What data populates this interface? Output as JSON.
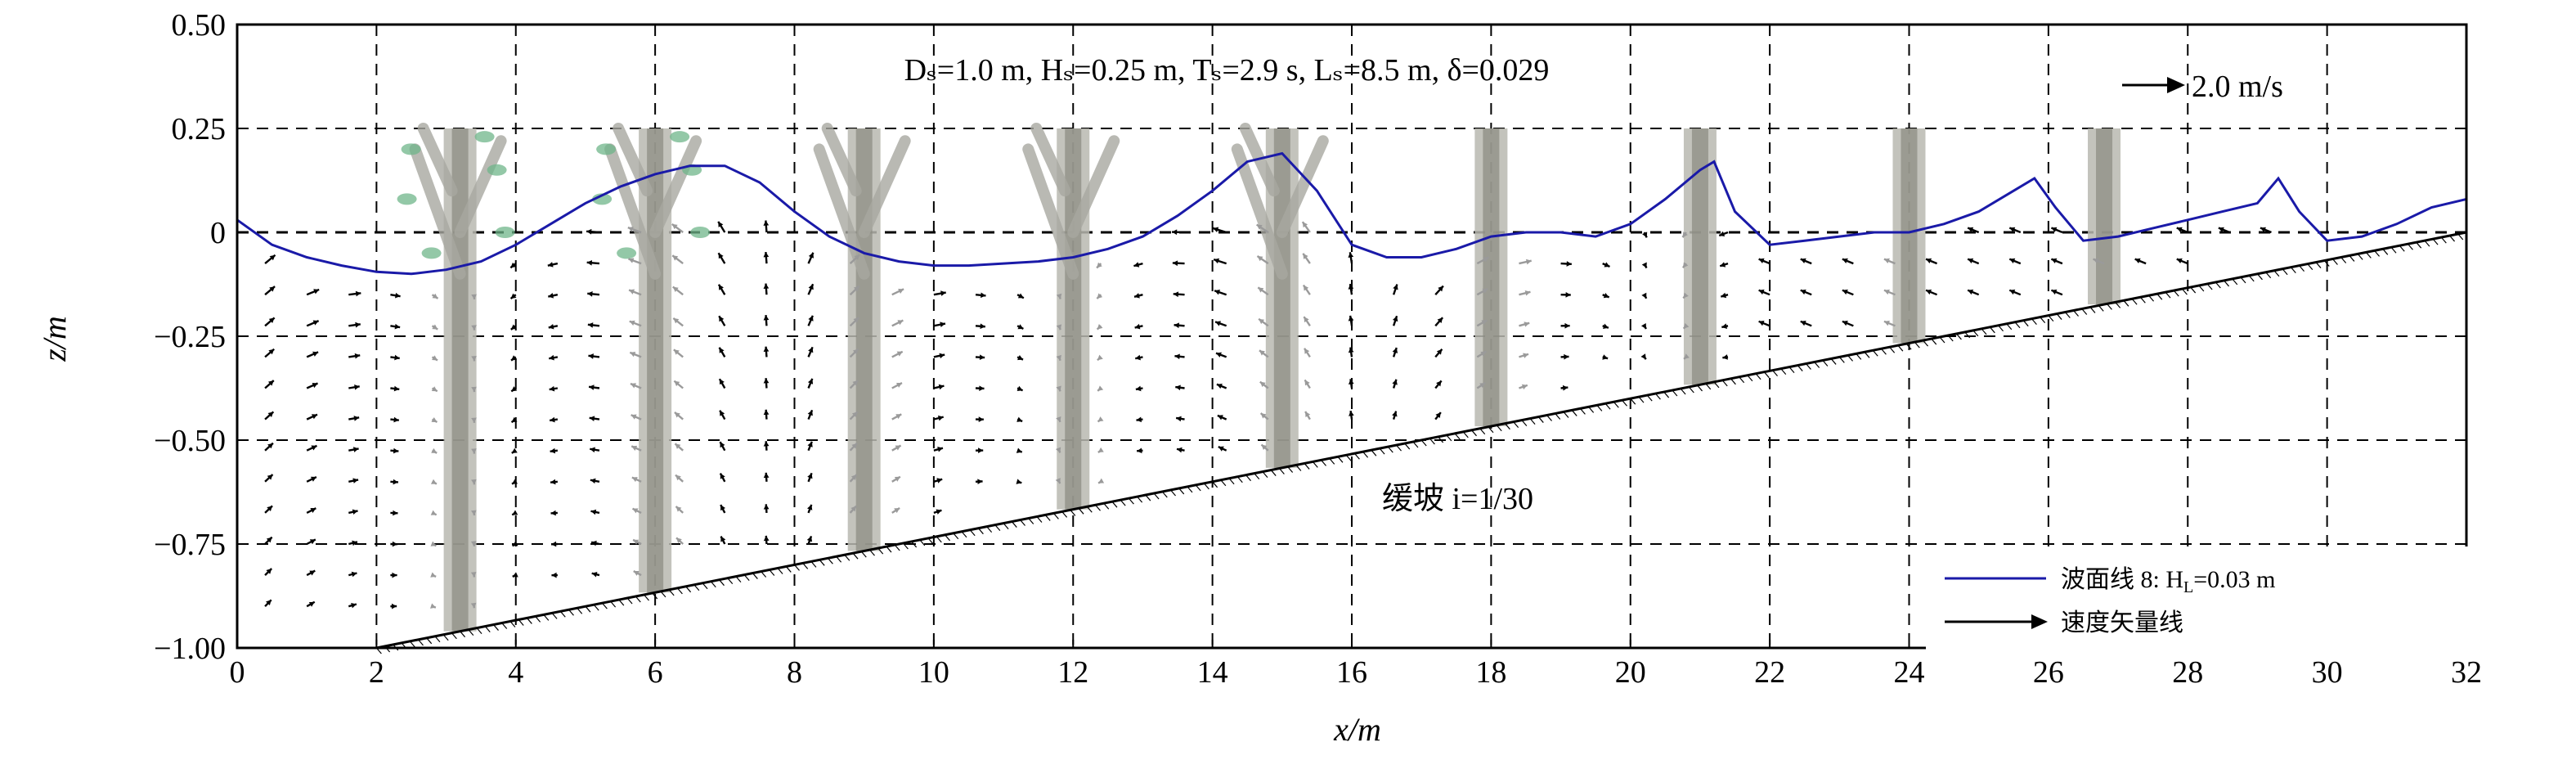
{
  "chart_data": {
    "type": "line",
    "annotation_top": "Dₛ=1.0 m, Hₛ=0.25 m, Tₛ=2.9 s, Lₛ=8.5 m, δ=0.029",
    "annotation_slope": "缓坡 i=1/30",
    "scale_vector_label": "2.0 m/s",
    "xlabel": "x/m",
    "ylabel": "z/m",
    "xlim": [
      0,
      32
    ],
    "ylim": [
      -1.0,
      0.5
    ],
    "xticks": [
      "0",
      "2",
      "4",
      "6",
      "8",
      "10",
      "12",
      "14",
      "16",
      "18",
      "20",
      "22",
      "24",
      "26",
      "28",
      "30",
      "32"
    ],
    "yticks": [
      "0.50",
      "0.25",
      "0",
      "−0.25",
      "−0.50",
      "−0.75",
      "−1.00"
    ],
    "ytick_values": [
      0.5,
      0.25,
      0,
      -0.25,
      -0.5,
      -0.75,
      -1.0
    ],
    "grid": true,
    "legend_position": "bottom-right",
    "series": [
      {
        "name": "波面线 8: H_L=0.03 m",
        "legend_label": "波面线 8: H",
        "legend_sub": "L",
        "legend_tail": "=0.03 m",
        "color": "#1a1aa8",
        "x": [
          0,
          0.5,
          1,
          1.5,
          2,
          2.5,
          3,
          3.5,
          4,
          4.5,
          5,
          5.5,
          6,
          6.5,
          7,
          7.5,
          8,
          8.5,
          9,
          9.5,
          10,
          10.5,
          11,
          11.5,
          12,
          12.5,
          13,
          13.5,
          14,
          14.5,
          15,
          15.5,
          16,
          16.5,
          17,
          17.5,
          18,
          18.5,
          19,
          19.5,
          20,
          20.5,
          21,
          21.2,
          21.5,
          22,
          22.5,
          23,
          23.5,
          24,
          24.5,
          25,
          25.5,
          25.8,
          26.1,
          26.5,
          27,
          27.5,
          28,
          28.5,
          29,
          29.3,
          29.6,
          30,
          30.5,
          31,
          31.5,
          32
        ],
        "y": [
          0.03,
          -0.03,
          -0.06,
          -0.08,
          -0.095,
          -0.1,
          -0.09,
          -0.07,
          -0.03,
          0.02,
          0.07,
          0.11,
          0.14,
          0.16,
          0.16,
          0.12,
          0.05,
          -0.01,
          -0.05,
          -0.07,
          -0.08,
          -0.08,
          -0.075,
          -0.07,
          -0.06,
          -0.04,
          -0.01,
          0.04,
          0.1,
          0.17,
          0.19,
          0.1,
          -0.03,
          -0.06,
          -0.06,
          -0.04,
          -0.01,
          0,
          0.0,
          -0.01,
          0.02,
          0.08,
          0.15,
          0.17,
          0.05,
          -0.03,
          -0.02,
          -0.01,
          0.0,
          0.0,
          0.02,
          0.05,
          0.1,
          0.13,
          0.06,
          -0.02,
          -0.01,
          0.01,
          0.03,
          0.05,
          0.07,
          0.13,
          0.05,
          -0.02,
          -0.01,
          0.02,
          0.06,
          0.08
        ]
      },
      {
        "name": "速度矢量线",
        "color": "#000000"
      }
    ],
    "slope": {
      "x0": 2,
      "z0": -1.0,
      "x1": 32,
      "z1": 0.0
    },
    "trees_x": [
      3.2,
      6.0,
      9.0,
      12.0,
      15.0,
      18.0,
      21.0,
      24.0,
      26.8
    ]
  }
}
